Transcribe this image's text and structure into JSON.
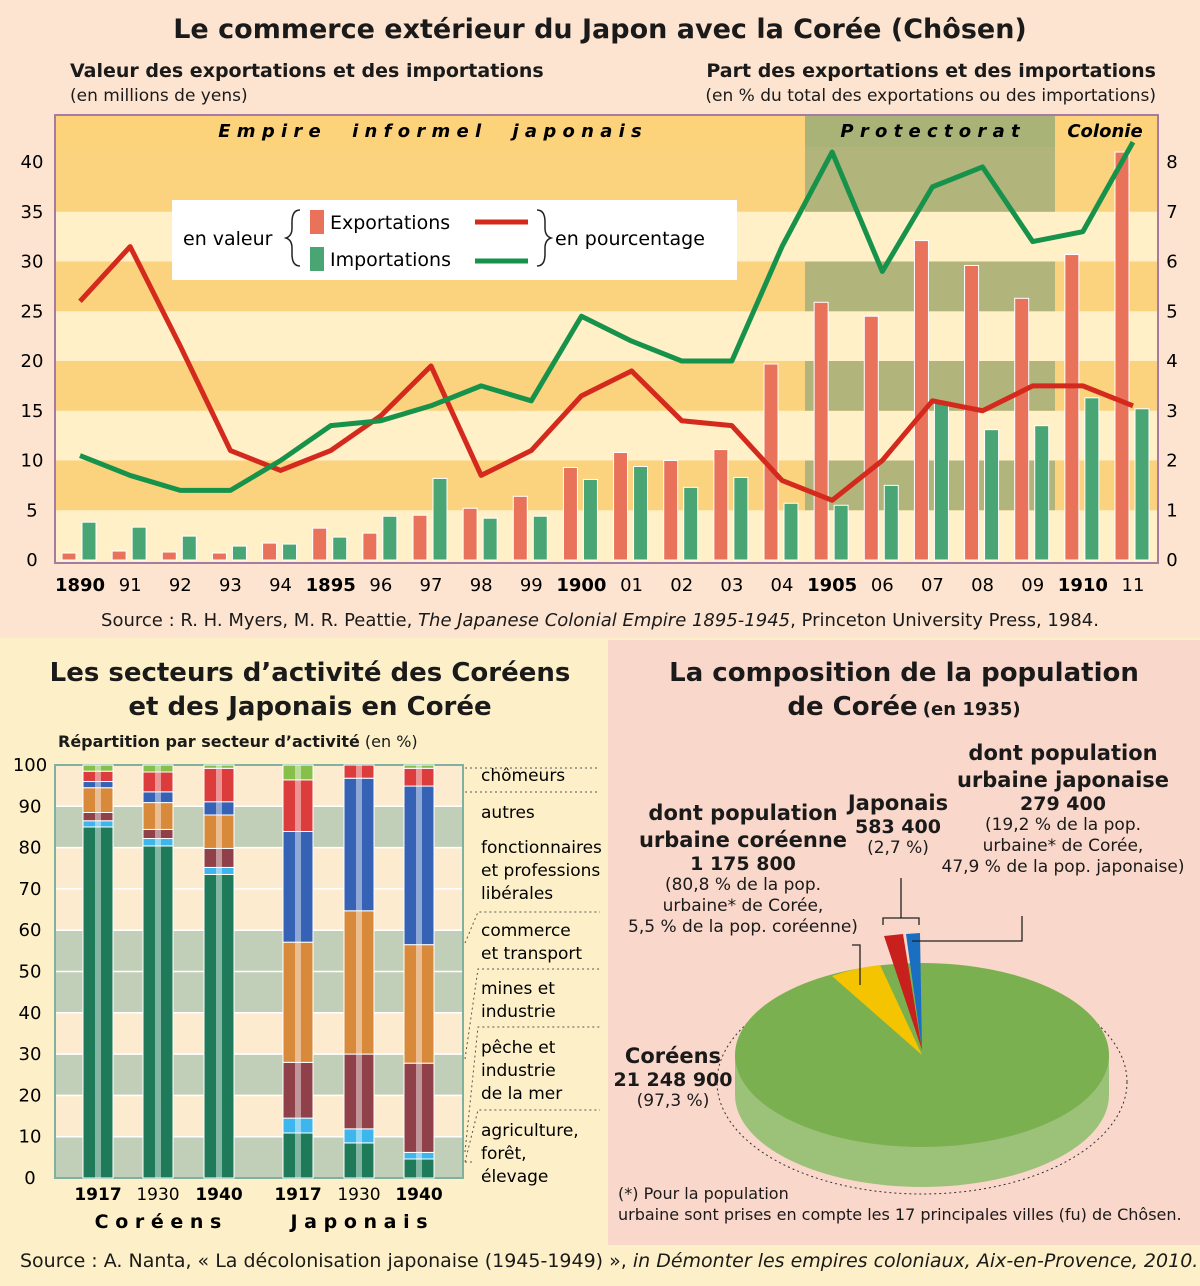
{
  "top": {
    "title": "Le commerce extérieur du Japon avec la Corée (Chôsen)",
    "left_axis_title": "Valeur des exportations et des importations",
    "left_axis_unit": "(en millions de yens)",
    "right_axis_title": "Part des exportations et des importations",
    "right_axis_unit": "(en % du total des exportations ou des importations)",
    "periods": [
      "E m p i r e     i n f o r m e l     j a p o n a i s",
      "P r o t e c t o r a t",
      "Colonie"
    ],
    "legend": {
      "en_valeur": "en valeur",
      "exports": "Exportations",
      "imports": "Importations",
      "en_pourcentage": "en pourcentage"
    },
    "source_prefix": "Source : R. H. Myers, M. R. Peattie, ",
    "source_title": "The Japanese Colonial Empire 1895-1945",
    "source_suffix": ", Princeton University Press, 1984."
  },
  "chart_data": [
    {
      "type": "bar+line",
      "title": "Le commerce extérieur du Japon avec la Corée (Chôsen)",
      "categories": [
        "1890",
        "91",
        "92",
        "93",
        "94",
        "1895",
        "96",
        "97",
        "98",
        "99",
        "1900",
        "01",
        "02",
        "03",
        "04",
        "1905",
        "06",
        "07",
        "08",
        "09",
        "1910",
        "11"
      ],
      "bold_categories": [
        "1890",
        "1895",
        "1900",
        "1905",
        "1910"
      ],
      "left_ylim": [
        0,
        40
      ],
      "left_ticks": [
        "0",
        "5",
        "10",
        "15",
        "20",
        "25",
        "30",
        "35",
        "40"
      ],
      "right_ylim": [
        0,
        8
      ],
      "right_ticks": [
        "0",
        "1",
        "2",
        "3",
        "4",
        "5",
        "6",
        "7",
        "8"
      ],
      "series": [
        {
          "name": "Exportations (valeur, M yens)",
          "type": "bar",
          "axis": "left",
          "color": "#e8735a",
          "values": [
            0.7,
            0.9,
            0.8,
            0.7,
            1.7,
            3.2,
            2.7,
            4.5,
            5.2,
            6.4,
            9.3,
            10.8,
            10.0,
            11.1,
            19.7,
            25.9,
            24.5,
            32.1,
            29.6,
            26.3,
            30.7,
            41.0
          ]
        },
        {
          "name": "Importations (valeur, M yens)",
          "type": "bar",
          "axis": "left",
          "color": "#4aa574",
          "values": [
            3.8,
            3.3,
            2.4,
            1.4,
            1.6,
            2.3,
            4.4,
            8.2,
            4.2,
            4.4,
            8.1,
            9.4,
            7.3,
            8.3,
            5.7,
            5.5,
            7.5,
            15.8,
            13.1,
            13.5,
            16.3,
            15.2
          ]
        },
        {
          "name": "Exportations (%)",
          "type": "line",
          "axis": "right",
          "color": "#d42a1e",
          "values": [
            5.2,
            6.3,
            4.3,
            2.2,
            1.8,
            2.2,
            2.9,
            3.9,
            1.7,
            2.2,
            3.3,
            3.8,
            2.8,
            2.7,
            1.6,
            1.2,
            2.0,
            3.2,
            3.0,
            3.5,
            3.5,
            3.1
          ]
        },
        {
          "name": "Importations (%)",
          "type": "line",
          "axis": "right",
          "color": "#17924a",
          "values": [
            2.1,
            1.7,
            1.4,
            1.4,
            2.0,
            2.7,
            2.8,
            3.1,
            3.5,
            3.2,
            4.9,
            4.4,
            4.0,
            4.0,
            6.3,
            8.2,
            5.8,
            7.5,
            7.9,
            6.4,
            6.6,
            8.4
          ]
        }
      ]
    },
    {
      "type": "stacked-bar",
      "title": "Les secteurs d'activité des Coréens et des Japonais en Corée",
      "ylabel": "Répartition par secteur d'activité (en %)",
      "ylim": [
        0,
        100
      ],
      "ticks": [
        "0",
        "10",
        "20",
        "30",
        "40",
        "50",
        "60",
        "70",
        "80",
        "90",
        "100"
      ],
      "groups": [
        "C o r é e n s",
        "J a p o n a i s"
      ],
      "categories": [
        "1917",
        "1930",
        "1940",
        "1917",
        "1930",
        "1940"
      ],
      "bold_categories": [
        true,
        false,
        true,
        true,
        false,
        true
      ],
      "sectors": [
        {
          "name": "agriculture, forêt, élevage",
          "color": "#1f7a5a",
          "values": [
            85,
            80.4,
            73.5,
            10.9,
            8.5,
            4.6
          ]
        },
        {
          "name": "pêche et industrie de la mer",
          "color": "#3cb6ec",
          "values": [
            1.5,
            1.8,
            1.7,
            3.6,
            3.4,
            1.6
          ]
        },
        {
          "name": "mines et industrie",
          "color": "#8f4048",
          "values": [
            2,
            2.2,
            4.6,
            13.5,
            18.1,
            21.6
          ]
        },
        {
          "name": "commerce et transport",
          "color": "#d9893a",
          "values": [
            6,
            6.5,
            8.1,
            29.1,
            34.7,
            28.7
          ]
        },
        {
          "name": "fonctionnaires et professions libérales",
          "color": "#3562b4",
          "values": [
            1.5,
            2.6,
            3.2,
            26.8,
            32.1,
            38.4
          ]
        },
        {
          "name": "autres",
          "color": "#dd3c3c",
          "values": [
            2.5,
            4.8,
            8.1,
            12.5,
            3.2,
            4.3
          ]
        },
        {
          "name": "chômeurs",
          "color": "#86c04a",
          "values": [
            1.5,
            1.7,
            0.8,
            3.6,
            0,
            0.8
          ]
        }
      ]
    },
    {
      "type": "pie",
      "title": "La composition de la population de Corée (en 1935)",
      "slices": [
        {
          "name": "Coréens",
          "value": 21248900,
          "percent": 97.3,
          "color": "#7ab04f"
        },
        {
          "name": "dont population urbaine coréenne",
          "value": 1175800,
          "color": "#f5c400"
        },
        {
          "name": "Japonais",
          "value": 583400,
          "percent": 2.7,
          "color": "#c8201c"
        },
        {
          "name": "dont population urbaine japonaise",
          "value": 279400,
          "color": "#1a6fc0"
        }
      ]
    }
  ],
  "sectors_panel": {
    "title_line1": "Les secteurs d’activité des Coréens",
    "title_line2": "et des Japonais en Corée",
    "ylabel": "Répartition par secteur d’activité",
    "ylabel_unit": "(en %)",
    "legend": [
      "chômeurs",
      "autres",
      "fonctionnaires",
      "et professions",
      "libérales",
      "commerce",
      "et transport",
      "mines et",
      "industrie",
      "pêche et",
      "industrie",
      "de la mer",
      "agriculture,",
      "forêt,",
      "élevage"
    ]
  },
  "population_panel": {
    "title_line1": "La composition de la population",
    "title_line2": "de Corée",
    "title_year": "(en 1935)",
    "korean_urban": {
      "l1": "dont population",
      "l2": "urbaine coréenne",
      "value": "1 175 800",
      "n1": "(80,8 % de la pop.",
      "n2": "urbaine* de Corée,",
      "n3": "5,5 % de la pop. coréenne)"
    },
    "japanese": {
      "label": "Japonais",
      "value": "583 400",
      "pct": "(2,7 %)"
    },
    "japanese_urban": {
      "l1": "dont population",
      "l2": "urbaine japonaise",
      "value": "279 400",
      "n1": "(19,2 % de la pop.",
      "n2": "urbaine* de Corée,",
      "n3": "47,9 % de la pop. japonaise)"
    },
    "koreans": {
      "label": "Coréens",
      "value": "21 248 900",
      "pct": "(97,3 %)"
    },
    "footnote1": "(*) Pour la population",
    "footnote2": "urbaine sont prises en compte les 17 principales villes (fu) de Chôsen."
  },
  "footer": {
    "prefix": "Source : A. Nanta, « La décolonisation japonaise (1945-1949) », ",
    "italic": "in Démonter les empires coloniaux, Aix-en-Provence, 2010."
  }
}
